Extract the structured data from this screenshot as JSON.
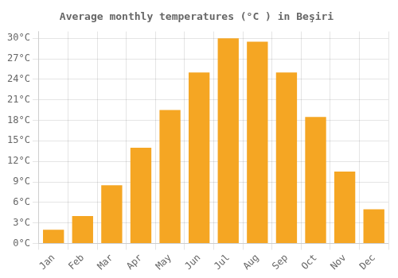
{
  "chart_data": {
    "type": "bar",
    "title": "Average monthly temperatures (°C ) in Beşiri",
    "categories": [
      "Jan",
      "Feb",
      "Mar",
      "Apr",
      "May",
      "Jun",
      "Jul",
      "Aug",
      "Sep",
      "Oct",
      "Nov",
      "Dec"
    ],
    "values": [
      2,
      4,
      8.5,
      14,
      19.5,
      25,
      30,
      29.5,
      25,
      18.5,
      10.5,
      5
    ],
    "color": "#F5A623",
    "ylim": [
      0,
      31
    ],
    "yticks": [
      {
        "value": 0,
        "label": "0°C"
      },
      {
        "value": 3,
        "label": "3°C"
      },
      {
        "value": 6,
        "label": "6°C"
      },
      {
        "value": 9,
        "label": "9°C"
      },
      {
        "value": 12,
        "label": "12°C"
      },
      {
        "value": 15,
        "label": "15°C"
      },
      {
        "value": 18,
        "label": "18°C"
      },
      {
        "value": 21,
        "label": "21°C"
      },
      {
        "value": 24,
        "label": "24°C"
      },
      {
        "value": 27,
        "label": "27°C"
      },
      {
        "value": 30,
        "label": "30°C"
      }
    ],
    "grid": true
  }
}
